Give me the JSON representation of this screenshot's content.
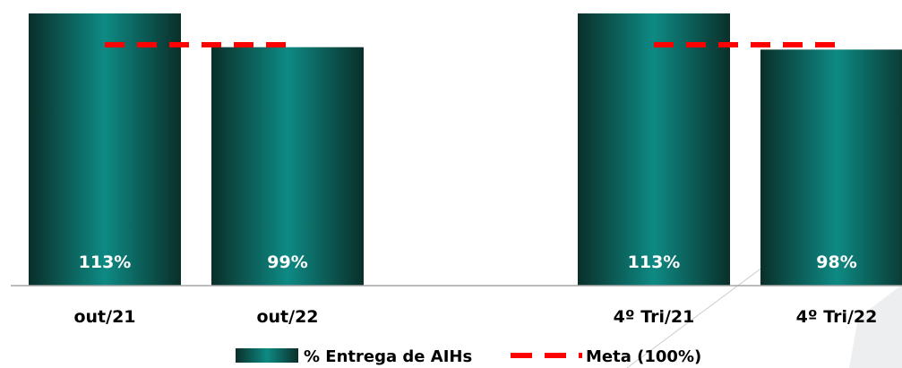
{
  "chart_data": {
    "type": "bar",
    "title": "",
    "xlabel": "",
    "ylabel": "",
    "ylim": [
      0,
      115
    ],
    "grid": false,
    "legend_position": "bottom",
    "categories": [
      "out/21",
      "out/22",
      "4º Tri/21",
      "4º Tri/22"
    ],
    "series": [
      {
        "name": "% Entrega de AIHs",
        "type": "bar",
        "values": [
          113,
          99,
          113,
          98
        ],
        "value_labels": [
          "113%",
          "99%",
          "113%",
          "98%"
        ],
        "color": "#006B66"
      },
      {
        "name": "Meta (100%)",
        "type": "line",
        "style": "dashed",
        "values": [
          100,
          100,
          100,
          100
        ],
        "color": "#FF0000"
      }
    ],
    "groups": [
      [
        "out/21",
        "out/22"
      ],
      [
        "4º Tri/21",
        "4º Tri/22"
      ]
    ]
  },
  "colors": {
    "bar_dark": "#0A2F2A",
    "bar_light": "#0E8A84",
    "target_line": "#FF0000",
    "axis": "#A6A6A6",
    "decoration": "#ECEEF0"
  }
}
